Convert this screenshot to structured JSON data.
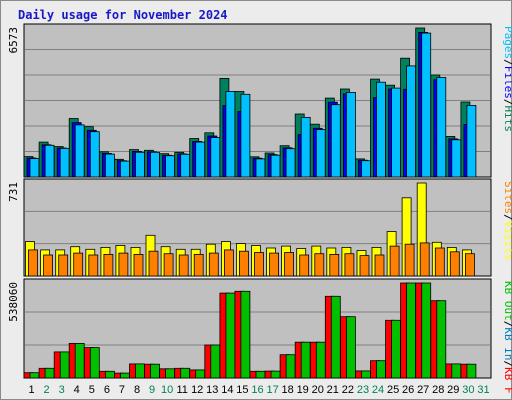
{
  "chart_data": {
    "type": "bar",
    "title": "Daily usage for November 2024",
    "colors": {
      "hits": "#00805c",
      "files": "#0000ff",
      "pages": "#00c0ff",
      "visits": "#ffff00",
      "sites": "#ff8000",
      "kb_f": "#ff0000",
      "kb_in": "#0080c0",
      "kb_out": "#00c000",
      "weekday_label": "#000000",
      "weekend_label": "#00805c",
      "panel_bg": "#c0c0c0"
    },
    "categories": [
      "1",
      "2",
      "3",
      "4",
      "5",
      "6",
      "7",
      "8",
      "9",
      "10",
      "11",
      "12",
      "13",
      "14",
      "15",
      "16",
      "17",
      "18",
      "19",
      "20",
      "21",
      "22",
      "23",
      "24",
      "25",
      "26",
      "27",
      "28",
      "29",
      "30",
      "31"
    ],
    "weekend_days": [
      "2",
      "3",
      "9",
      "10",
      "16",
      "17",
      "23",
      "24",
      "30",
      "31"
    ],
    "panels": [
      {
        "id": "hits-files-pages",
        "ymax_label": "6573",
        "ylim": [
          0,
          6573
        ],
        "legend": [
          {
            "text": "Hits",
            "color": "#00805c"
          },
          {
            "text": "/",
            "color": "#000000"
          },
          {
            "text": "Files",
            "color": "#0000ff"
          },
          {
            "text": "/",
            "color": "#000000"
          },
          {
            "text": "Pages",
            "color": "#00c0ff"
          }
        ],
        "series": [
          {
            "name": "Hits",
            "color": "#00805c",
            "values": [
              900,
              1540,
              1340,
              2580,
              2220,
              1110,
              780,
              1210,
              1180,
              1030,
              1090,
              1700,
              1950,
              4350,
              3770,
              890,
              1060,
              1380,
              2780,
              2330,
              3480,
              3880,
              800,
              4320,
              4050,
              5240,
              6573,
              4500,
              1790,
              3310,
              0
            ]
          },
          {
            "name": "Files",
            "color": "#0000ff",
            "values": [
              840,
              1420,
              1280,
              2400,
              2060,
              1040,
              720,
              1130,
              1110,
              960,
              1020,
              1570,
              1810,
              3150,
              2890,
              830,
              990,
              1290,
              1870,
              2150,
              3300,
              3670,
              740,
              3500,
              3880,
              3870,
              6380,
              4290,
              1680,
              2320,
              0
            ]
          },
          {
            "name": "Pages",
            "color": "#00c0ff",
            "values": [
              810,
              1400,
              1260,
              2300,
              2000,
              1010,
              700,
              1090,
              1090,
              940,
              1000,
              1540,
              1740,
              3770,
              3650,
              800,
              960,
              1250,
              2630,
              2090,
              3190,
              3730,
              720,
              4180,
              3920,
              4900,
              6350,
              4390,
              1640,
              3160,
              0
            ]
          }
        ]
      },
      {
        "id": "visits-sites",
        "ymax_label": "731",
        "ylim": [
          0,
          731
        ],
        "legend": [
          {
            "text": "Visits",
            "color": "#ffff00"
          },
          {
            "text": "/",
            "color": "#000000"
          },
          {
            "text": "Sites",
            "color": "#ff8000"
          }
        ],
        "series": [
          {
            "name": "Visits",
            "color": "#ffff00",
            "values": [
              270,
              205,
              205,
              230,
              210,
              225,
              240,
              225,
              320,
              230,
              210,
              210,
              250,
              270,
              255,
              240,
              220,
              235,
              215,
              235,
              220,
              225,
              200,
              225,
              350,
              615,
              731,
              265,
              225,
              205,
              0
            ]
          },
          {
            "name": "Sites",
            "color": "#ff8000",
            "values": [
              205,
              165,
              165,
              180,
              165,
              170,
              180,
              170,
              195,
              175,
              165,
              170,
              180,
              205,
              195,
              185,
              180,
              185,
              165,
              175,
              170,
              175,
              160,
              165,
              235,
              250,
              260,
              220,
              190,
              175,
              0
            ]
          }
        ]
      },
      {
        "id": "kbf-kbin-kbout",
        "ymax_label": "538060",
        "ylim": [
          0,
          538060
        ],
        "legend": [
          {
            "text": "KB F",
            "color": "#ff0000"
          },
          {
            "text": "/",
            "color": "#000000"
          },
          {
            "text": "KB In",
            "color": "#0080c0"
          },
          {
            "text": "/",
            "color": "#000000"
          },
          {
            "text": "KB Out",
            "color": "#00c000"
          }
        ],
        "series": [
          {
            "name": "KB F",
            "color": "#ff0000",
            "values": [
              30000,
              55000,
              148000,
              196000,
              172000,
              38000,
              28000,
              80000,
              78000,
              52000,
              55000,
              46000,
              187000,
              481000,
              491000,
              38000,
              39000,
              132000,
              203000,
              203000,
              463000,
              347000,
              40000,
              98000,
              327000,
              538060,
              538060,
              438000,
              80000,
              78000,
              0
            ]
          },
          {
            "name": "KB In",
            "color": "#0080c0",
            "values": [
              0,
              0,
              0,
              0,
              0,
              0,
              0,
              0,
              0,
              0,
              0,
              0,
              0,
              0,
              0,
              0,
              0,
              0,
              0,
              0,
              0,
              0,
              0,
              0,
              0,
              0,
              0,
              0,
              0,
              0,
              0
            ]
          },
          {
            "name": "KB Out",
            "color": "#00c000",
            "values": [
              30000,
              55000,
              148000,
              196000,
              172000,
              38000,
              28000,
              80000,
              78000,
              52000,
              55000,
              46000,
              187000,
              481000,
              491000,
              38000,
              39000,
              132000,
              203000,
              203000,
              463000,
              347000,
              40000,
              98000,
              327000,
              538060,
              538060,
              438000,
              80000,
              78000,
              0
            ]
          }
        ]
      }
    ]
  }
}
